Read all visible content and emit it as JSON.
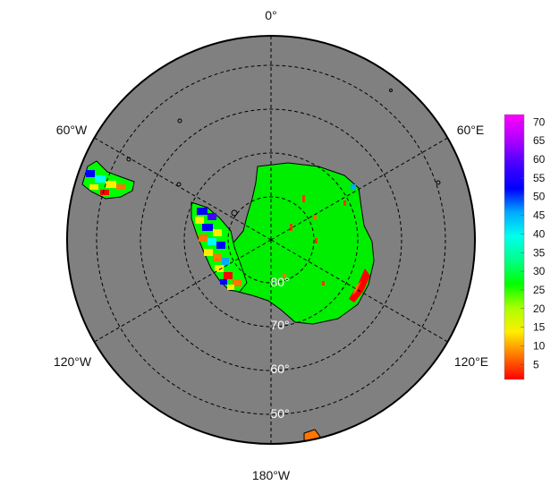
{
  "map": {
    "projection": "south-polar stereographic",
    "lon_labels": {
      "top": "0°",
      "upper_left": "60°W",
      "upper_right": "60°E",
      "lower_left": "120°W",
      "lower_right": "120°E",
      "bottom": "180°W"
    },
    "lat_labels": [
      "80°",
      "70°",
      "60°",
      "50°"
    ],
    "ocean_color": "#808080",
    "gridline_style": "dashed"
  },
  "colorbar": {
    "ticks": [
      "70",
      "65",
      "60",
      "55",
      "50",
      "45",
      "40",
      "35",
      "30",
      "25",
      "20",
      "15",
      "10",
      "5"
    ],
    "range": [
      1,
      72
    ],
    "colors": [
      "#ff0000",
      "#ff7700",
      "#ffee00",
      "#aaff00",
      "#00ff00",
      "#00ff88",
      "#00ffee",
      "#00aaff",
      "#0000ff",
      "#4400ff",
      "#aa00ff",
      "#ff00ff"
    ]
  },
  "data_colors": {
    "antarctica_main": "#00ee00",
    "peninsula_mix": [
      "#0000ff",
      "#ffee00",
      "#ff7700",
      "#00ffee",
      "#00ff00",
      "#ff0000"
    ],
    "coast_edge": "#ff0000"
  }
}
